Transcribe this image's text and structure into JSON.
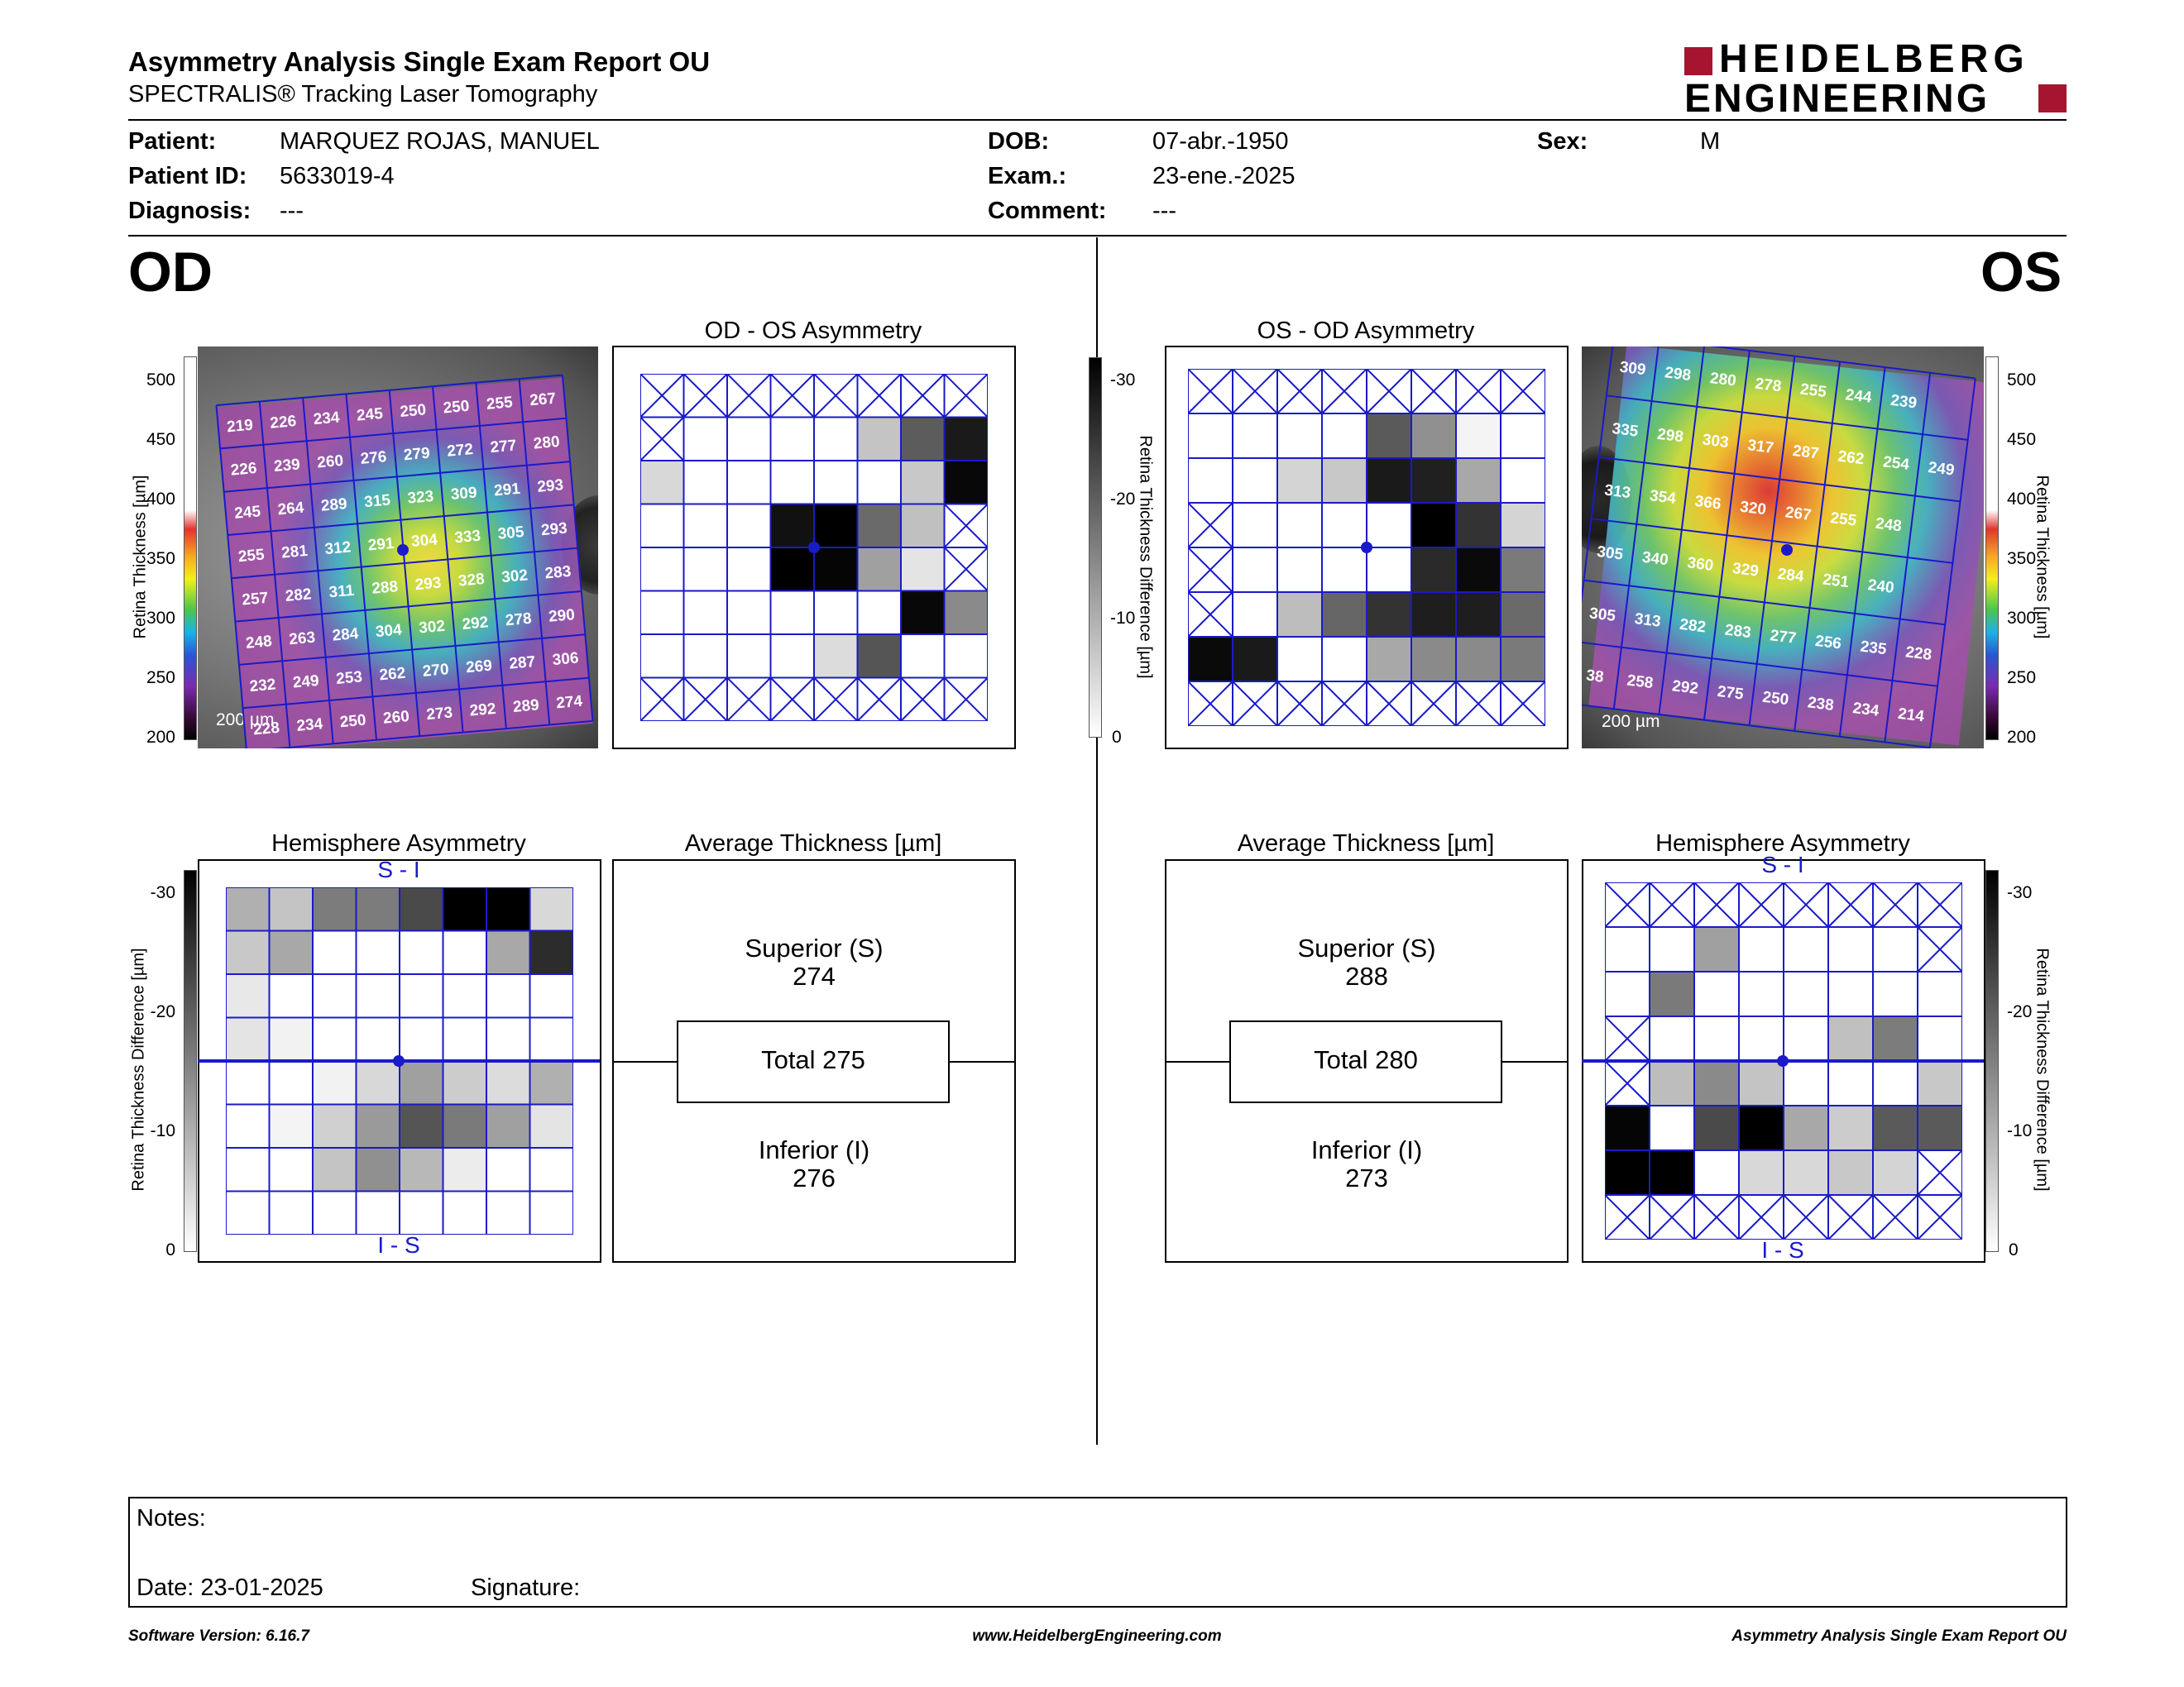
{
  "report": {
    "title": "Asymmetry Analysis Single Exam Report OU",
    "subtitle": "SPECTRALIS® Tracking Laser Tomography",
    "logo_line1": "HEIDELBERG",
    "logo_line2": "ENGINEERING",
    "brand_color": "#a5152f"
  },
  "patient": {
    "patient_label": "Patient:",
    "patient_value": "MARQUEZ ROJAS, MANUEL",
    "id_label": "Patient ID:",
    "id_value": "5633019-4",
    "diagnosis_label": "Diagnosis:",
    "diagnosis_value": "---",
    "dob_label": "DOB:",
    "dob_value": "07-abr.-1950",
    "exam_label": "Exam.:",
    "exam_value": "23-ene.-2025",
    "comment_label": "Comment:",
    "comment_value": "---",
    "sex_label": "Sex:",
    "sex_value": "M"
  },
  "od": {
    "eye": "OD",
    "asym_title": "OD - OS Asymmetry",
    "hemi_title": "Hemisphere Asymmetry",
    "avg_title": "Average Thickness [µm]",
    "superior_label": "Superior (S)",
    "superior_value": "274",
    "total_label": "Total 275",
    "inferior_label": "Inferior (I)",
    "inferior_value": "276",
    "hemi_top": "S - I",
    "hemi_bottom": "I - S",
    "scale": "200 µm",
    "thickness_axis_label": "Retina Thickness [µm]",
    "diff_axis_label": "Retina Thickness Difference [µm]",
    "thickness_ticks": [
      "500",
      "450",
      "400",
      "350",
      "300",
      "250",
      "200"
    ],
    "diff_ticks": [
      "-30",
      "-20",
      "-10",
      "0"
    ],
    "grid_values": [
      [
        "219",
        "226",
        "234",
        "245",
        "250",
        "250",
        "255",
        "267"
      ],
      [
        "226",
        "239",
        "260",
        "276",
        "279",
        "272",
        "277",
        "280"
      ],
      [
        "245",
        "264",
        "289",
        "315",
        "323",
        "309",
        "291",
        "293"
      ],
      [
        "255",
        "281",
        "312",
        "291",
        "304",
        "333",
        "305",
        "293"
      ],
      [
        "257",
        "282",
        "311",
        "288",
        "293",
        "328",
        "302",
        "283"
      ],
      [
        "248",
        "263",
        "284",
        "304",
        "302",
        "292",
        "278",
        "290"
      ],
      [
        "232",
        "249",
        "253",
        "262",
        "270",
        "269",
        "287",
        "306"
      ],
      [
        "228",
        "234",
        "250",
        "260",
        "273",
        "292",
        "289",
        "274"
      ]
    ],
    "asym_cells": [
      [
        "x",
        "x",
        "x",
        "x",
        "x",
        "x",
        "x",
        "x"
      ],
      [
        "x",
        "w",
        "w",
        "w",
        "w",
        "#c4c4c4",
        "#5c5c5c",
        "#1a1a1a"
      ],
      [
        "#d8d8d8",
        "w",
        "w",
        "w",
        "w",
        "w",
        "#c8c8c8",
        "#080808"
      ],
      [
        "w",
        "w",
        "w",
        "#111111",
        "#000000",
        "#6a6a6a",
        "#c0c0c0",
        "x"
      ],
      [
        "w",
        "w",
        "w",
        "#000000",
        "#050505",
        "#a0a0a0",
        "#e4e4e4",
        "x"
      ],
      [
        "w",
        "w",
        "w",
        "w",
        "w",
        "w",
        "#080808",
        "#8a8a8a"
      ],
      [
        "w",
        "w",
        "w",
        "w",
        "#dcdcdc",
        "#555555",
        "w",
        "w"
      ],
      [
        "x",
        "x",
        "x",
        "x",
        "x",
        "x",
        "x",
        "x"
      ]
    ],
    "hemi_cells": [
      [
        "#b0b0b0",
        "#c4c4c4",
        "#7c7c7c",
        "#7c7c7c",
        "#4a4a4a",
        "#000000",
        "#000000",
        "#d8d8d8"
      ],
      [
        "#c8c8c8",
        "#a8a8a8",
        "w",
        "w",
        "w",
        "w",
        "#a8a8a8",
        "#2c2c2c"
      ],
      [
        "#e8e8e8",
        "w",
        "w",
        "w",
        "w",
        "w",
        "w",
        "w"
      ],
      [
        "#e4e4e4",
        "#f2f2f2",
        "w",
        "w",
        "w",
        "w",
        "w",
        "w"
      ],
      [
        "w",
        "w",
        "#f2f2f2",
        "#d8d8d8",
        "#a0a0a0",
        "#cccccc",
        "#dcdcdc",
        "#b0b0b0"
      ],
      [
        "w",
        "#f4f4f4",
        "#d0d0d0",
        "#9a9a9a",
        "#555555",
        "#7a7a7a",
        "#a0a0a0",
        "#e4e4e4"
      ],
      [
        "w",
        "w",
        "#c4c4c4",
        "#909090",
        "#b8b8b8",
        "#ececec",
        "w",
        "w"
      ],
      [
        "w",
        "w",
        "w",
        "w",
        "w",
        "w",
        "w",
        "w"
      ]
    ]
  },
  "os": {
    "eye": "OS",
    "asym_title": "OS - OD Asymmetry",
    "hemi_title": "Hemisphere Asymmetry",
    "avg_title": "Average Thickness [µm]",
    "superior_label": "Superior (S)",
    "superior_value": "288",
    "total_label": "Total 280",
    "inferior_label": "Inferior (I)",
    "inferior_value": "273",
    "hemi_top": "S - I",
    "hemi_bottom": "I - S",
    "scale": "200 µm",
    "thickness_axis_label": "Retina Thickness [µm]",
    "diff_axis_label": "Retina Thickness Difference [µm]",
    "thickness_ticks": [
      "500",
      "450",
      "400",
      "350",
      "300",
      "250",
      "200"
    ],
    "diff_ticks": [
      "-30",
      "-20",
      "-10",
      "0"
    ],
    "grid_values": [
      [
        "309",
        "298",
        "280",
        "278",
        "255",
        "244",
        "239",
        ""
      ],
      [
        "335",
        "298",
        "303",
        "317",
        "287",
        "262",
        "254",
        "249"
      ],
      [
        "313",
        "354",
        "366",
        "320",
        "267",
        "255",
        "248",
        ""
      ],
      [
        "305",
        "340",
        "360",
        "329",
        "284",
        "251",
        "240",
        ""
      ],
      [
        "305",
        "313",
        "282",
        "283",
        "277",
        "256",
        "235",
        "228"
      ],
      [
        "38",
        "258",
        "292",
        "275",
        "250",
        "238",
        "234",
        "214"
      ]
    ],
    "asym_cells": [
      [
        "x",
        "x",
        "x",
        "x",
        "x",
        "x",
        "x",
        "x"
      ],
      [
        "w",
        "w",
        "w",
        "w",
        "#5a5a5a",
        "#909090",
        "#f4f4f4",
        "w"
      ],
      [
        "w",
        "w",
        "#d4d4d4",
        "#c8c8c8",
        "#1a1a1a",
        "#202020",
        "#a8a8a8",
        "w"
      ],
      [
        "x",
        "w",
        "w",
        "w",
        "w",
        "#000000",
        "#333333",
        "#d4d4d4"
      ],
      [
        "x",
        "w",
        "w",
        "w",
        "w",
        "#2a2a2a",
        "#0a0a0a",
        "#7a7a7a"
      ],
      [
        "x",
        "w",
        "#bdbdbd",
        "#666666",
        "#333333",
        "#1e1e1e",
        "#1e1e1e",
        "#6a6a6a"
      ],
      [
        "#0a0a0a",
        "#1a1a1a",
        "w",
        "w",
        "#a8a8a8",
        "#8a8a8a",
        "#8a8a8a",
        "#7a7a7a"
      ],
      [
        "x",
        "x",
        "x",
        "x",
        "x",
        "x",
        "x",
        "x"
      ]
    ],
    "hemi_cells": [
      [
        "x",
        "x",
        "x",
        "x",
        "x",
        "x",
        "x",
        "x"
      ],
      [
        "w",
        "w",
        "#a0a0a0",
        "w",
        "w",
        "w",
        "w",
        "x"
      ],
      [
        "w",
        "#7a7a7a",
        "w",
        "w",
        "w",
        "w",
        "w",
        "w"
      ],
      [
        "x",
        "w",
        "w",
        "w",
        "w",
        "#c0c0c0",
        "#7c7c7c",
        "w"
      ],
      [
        "x",
        "#bdbdbd",
        "#8a8a8a",
        "#c4c4c4",
        "w",
        "w",
        "w",
        "#c8c8c8"
      ],
      [
        "#050505",
        "w",
        "#4a4a4a",
        "#000000",
        "#a8a8a8",
        "#cccccc",
        "#5a5a5a",
        "#5a5a5a"
      ],
      [
        "#000000",
        "#000000",
        "w",
        "#d8d8d8",
        "#d8d8d8",
        "#c8c8c8",
        "#d4d4d4",
        "x"
      ],
      [
        "x",
        "x",
        "x",
        "x",
        "x",
        "x",
        "x",
        "x"
      ]
    ]
  },
  "notes": {
    "notes_label": "Notes:",
    "date_label": "Date: 23-01-2025",
    "signature_label": "Signature:"
  },
  "footer": {
    "left": "Software Version: 6.16.7",
    "center": "www.HeidelbergEngineering.com",
    "right": "Asymmetry Analysis Single Exam Report OU"
  }
}
